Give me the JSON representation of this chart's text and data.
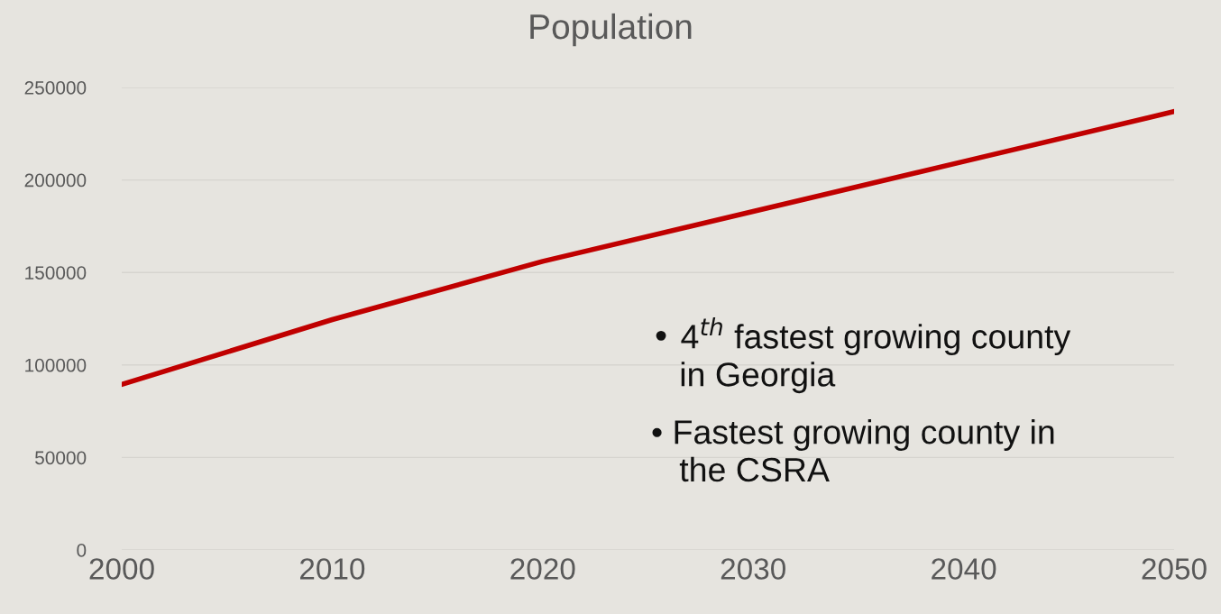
{
  "chart_data": {
    "type": "line",
    "title": "Population",
    "x": [
      2000,
      2010,
      2020,
      2030,
      2040,
      2050
    ],
    "series": [
      {
        "color": "#c00000",
        "values": [
          89500,
          124500,
          156000,
          183000,
          210000,
          237000
        ]
      }
    ],
    "xlim": [
      2000,
      2050
    ],
    "xticks": [
      2000,
      2010,
      2020,
      2030,
      2040,
      2050
    ],
    "ylim": [
      0,
      250000
    ],
    "yticks": [
      0,
      50000,
      100000,
      150000,
      200000,
      250000
    ],
    "grid": "y",
    "legend": false,
    "marker": "none",
    "line_style": "solid",
    "annotations": [
      "• 4$^{th}$ fastest growing county\n   in Georgia",
      "• Fastest growing county in\n   the CSRA"
    ]
  }
}
